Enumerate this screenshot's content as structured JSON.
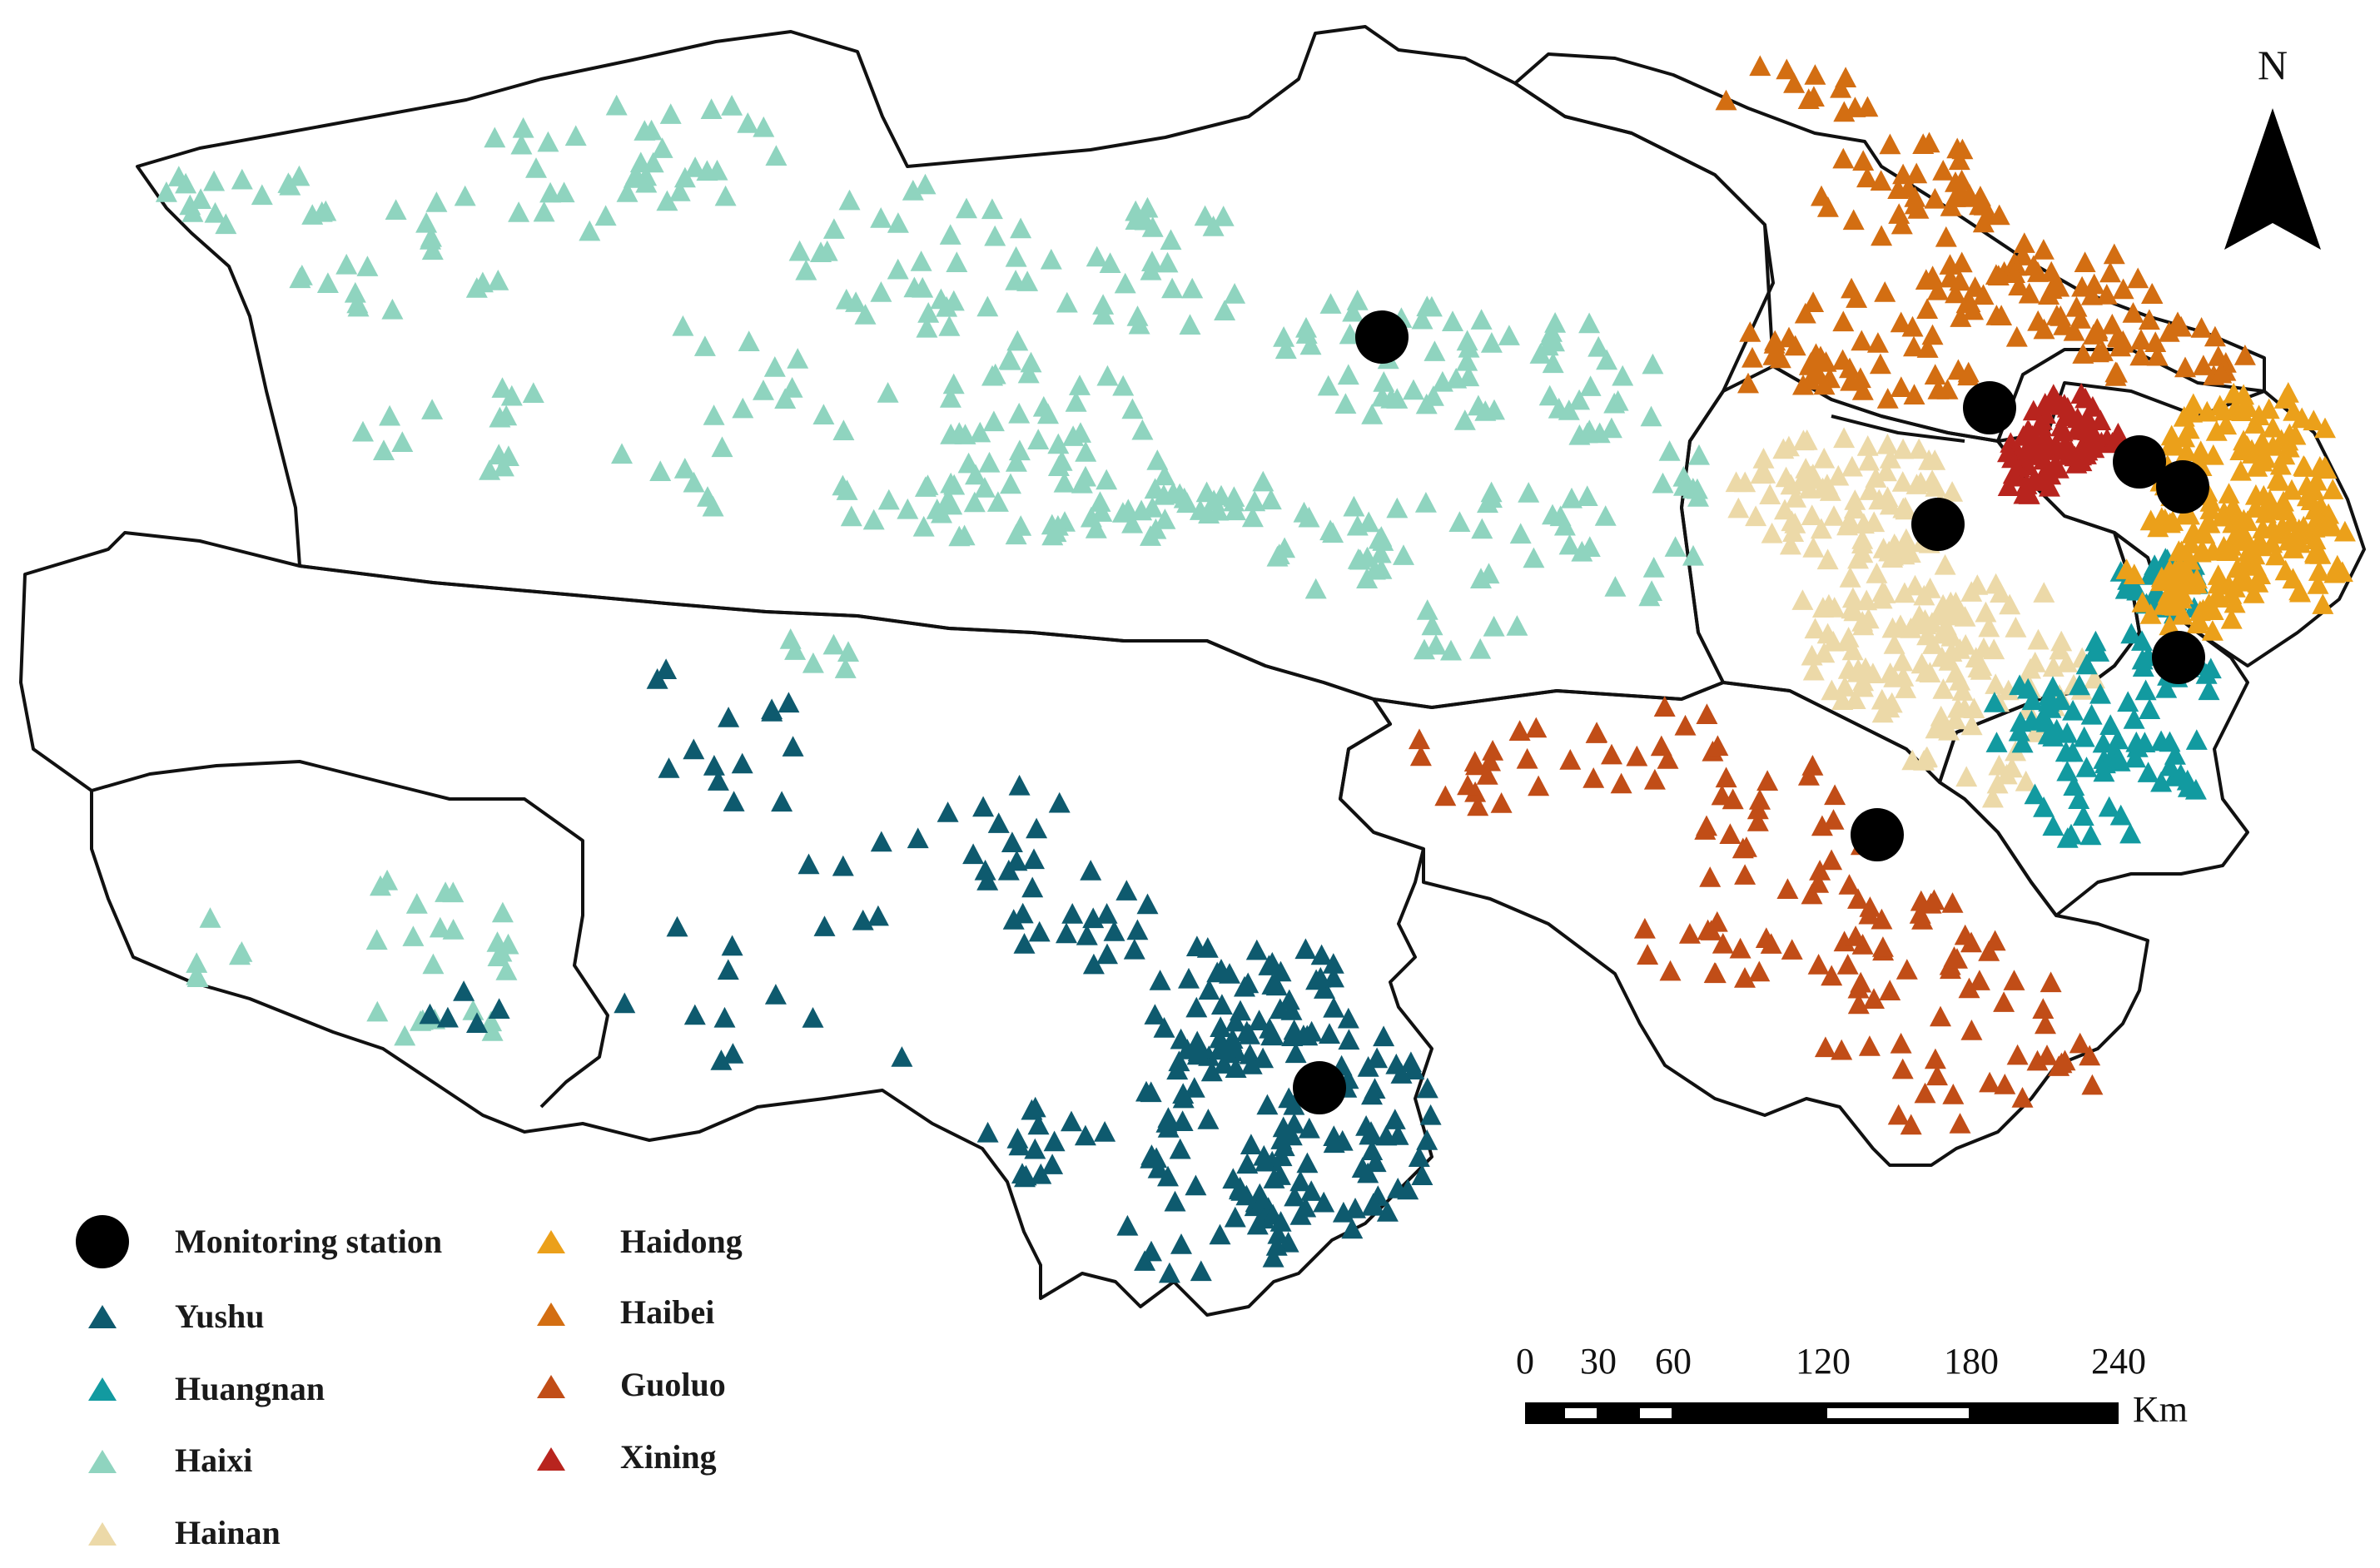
{
  "north_arrow": {
    "label": "N"
  },
  "colors": {
    "boundary": "#111111",
    "station": "#000000",
    "Yushu": "#0e5a6e",
    "Huangnan": "#129aa0",
    "Haixi": "#8fd4bf",
    "Hainan": "#ecd9a8",
    "Haidong": "#eba01a",
    "Haibei": "#d36e12",
    "Guoluo": "#c14d17",
    "Xining": "#b8241e"
  },
  "legend": {
    "items": [
      {
        "key": "station",
        "label": "Monitoring station",
        "symbol": "circle",
        "color": "#000000"
      },
      {
        "key": "Yushu",
        "label": "Yushu",
        "symbol": "triangle",
        "color": "#0e5a6e"
      },
      {
        "key": "Huangnan",
        "label": "Huangnan",
        "symbol": "triangle",
        "color": "#129aa0"
      },
      {
        "key": "Haixi",
        "label": "Haixi",
        "symbol": "triangle",
        "color": "#8fd4bf"
      },
      {
        "key": "Hainan",
        "label": "Hainan",
        "symbol": "triangle",
        "color": "#ecd9a8"
      },
      {
        "key": "Haidong",
        "label": "Haidong",
        "symbol": "triangle",
        "color": "#eba01a"
      },
      {
        "key": "Haibei",
        "label": "Haibei",
        "symbol": "triangle",
        "color": "#d36e12"
      },
      {
        "key": "Guoluo",
        "label": "Guoluo",
        "symbol": "triangle",
        "color": "#c14d17"
      },
      {
        "key": "Xining",
        "label": "Xining",
        "symbol": "triangle",
        "color": "#b8241e"
      }
    ]
  },
  "scale_bar": {
    "ticks": [
      "0",
      "30",
      "60",
      "120",
      "180",
      "240"
    ],
    "unit": "Km"
  }
}
